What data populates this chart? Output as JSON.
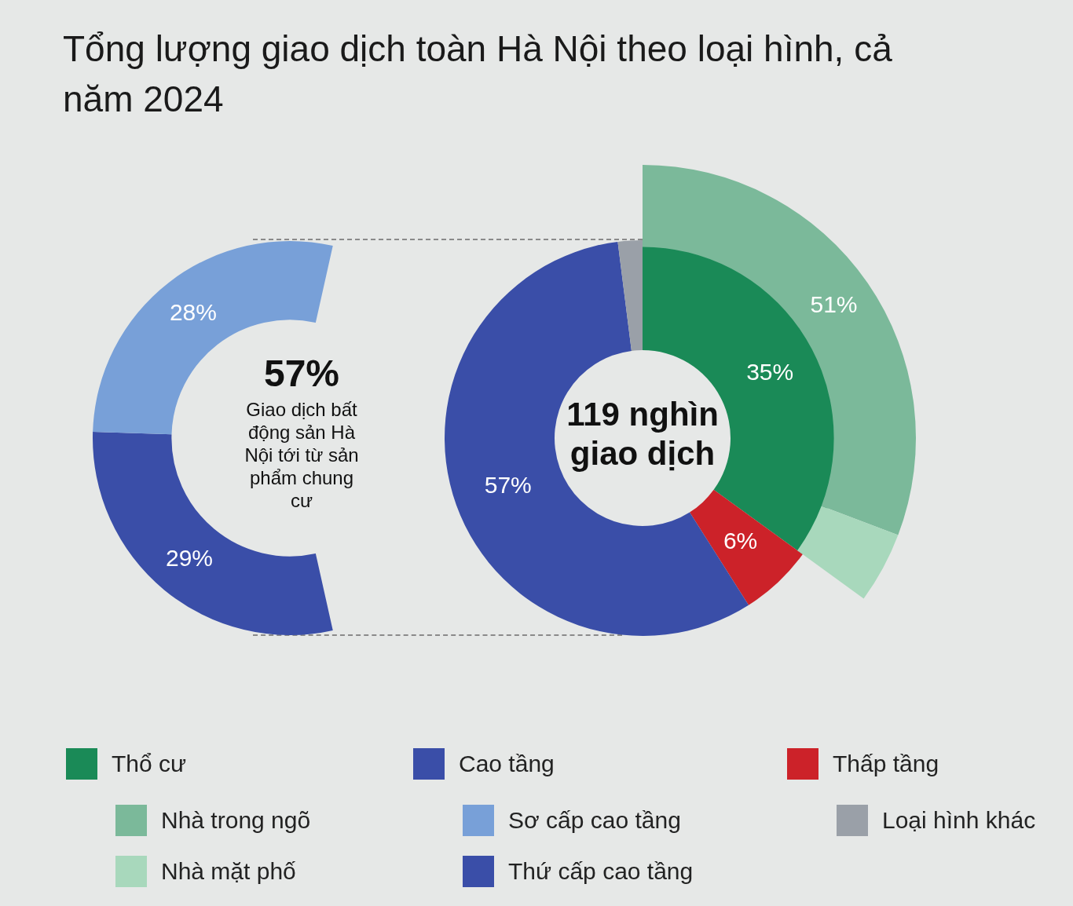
{
  "chart_data": [
    {
      "type": "donut",
      "title": "Tổng lượng giao dịch toàn Hà Nội theo loại hình, cả năm 2024",
      "categories": [
        "Sơ cấp cao tầng",
        "Thứ cấp cao tầng"
      ],
      "values": [
        28,
        29
      ],
      "colors": [
        "#78a0d8",
        "#3a4ea8"
      ],
      "value_labels": [
        "28%",
        "29%"
      ],
      "annotations": [
        "57%",
        "Giao dịch bất động sản Hà Nội tới từ sản phẩm chung cư"
      ],
      "legend": "bottom"
    },
    {
      "type": "donut",
      "categories": [
        "Thổ cư",
        "Thấp tầng",
        "Cao tầng",
        "Loại hình khác"
      ],
      "values": [
        35,
        6,
        57,
        2
      ],
      "colors": [
        "#1a8a57",
        "#cc2229",
        "#3a4ea8",
        "#9aa0a8"
      ],
      "value_labels": [
        "35%",
        "6%",
        "57%",
        null
      ],
      "annotations": [
        "119 nghìn giao dịch"
      ],
      "legend": "bottom"
    },
    {
      "type": "donut",
      "categories": [
        "Nhà trong ngõ",
        "Nhà mặt phố"
      ],
      "values": [
        51,
        7
      ],
      "colors": [
        "#7bb99a",
        "#a8d8bc"
      ],
      "value_labels": [
        "51%",
        null
      ],
      "legend": "bottom"
    }
  ]
}
